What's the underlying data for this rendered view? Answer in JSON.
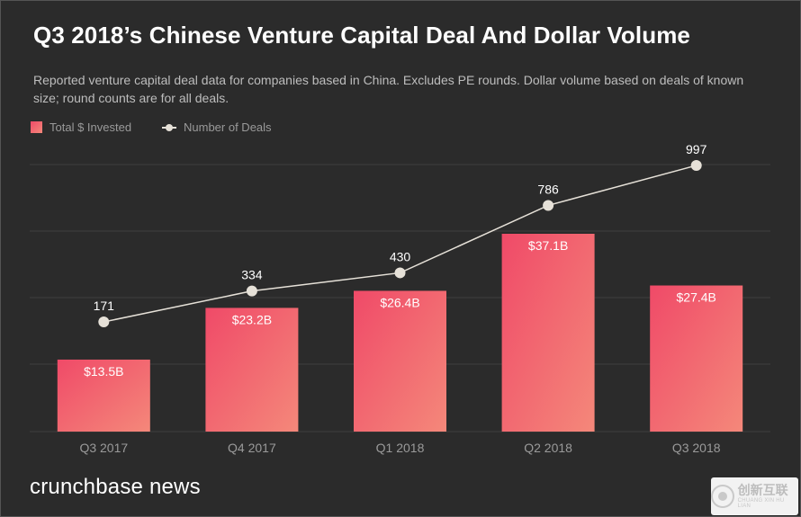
{
  "header": {
    "title": "Q3 2018’s Chinese Venture Capital Deal And Dollar Volume",
    "subtitle": "Reported venture capital deal data for companies based in China. Excludes PE rounds. Dollar volume based on deals of known size; round counts are for all deals."
  },
  "legend": {
    "bars_label": "Total $ Invested",
    "line_label": "Number of Deals"
  },
  "chart_data": {
    "type": "bar",
    "title": "Q3 2018’s Chinese Venture Capital Deal And Dollar Volume",
    "categories": [
      "Q3 2017",
      "Q4 2017",
      "Q1 2018",
      "Q2 2018",
      "Q3 2018"
    ],
    "series": [
      {
        "name": "Total $ Invested",
        "kind": "bar",
        "values": [
          13.5,
          23.2,
          26.4,
          37.1,
          27.4
        ],
        "labels": [
          "$13.5B",
          "$23.2B",
          "$26.4B",
          "$37.1B",
          "$27.4B"
        ],
        "ylim": [
          0,
          40
        ]
      },
      {
        "name": "Number of Deals",
        "kind": "line",
        "values": [
          171,
          334,
          430,
          786,
          997
        ],
        "labels": [
          "171",
          "334",
          "430",
          "786",
          "997"
        ],
        "ylim": [
          0,
          1200
        ]
      }
    ],
    "grid": true,
    "legend_position": "top-left"
  },
  "colors": {
    "background": "#2b2b2b",
    "bar_top": "#f04a68",
    "bar_bottom": "#f4887a",
    "line": "#e6e1d8",
    "gridline": "#3f3f3f",
    "tick_text": "#9a9a9a"
  },
  "footer": {
    "brand": "crunchbase news",
    "watermark_cn": "创新互联",
    "watermark_en": "CHUANG XIN HU LIAN"
  }
}
